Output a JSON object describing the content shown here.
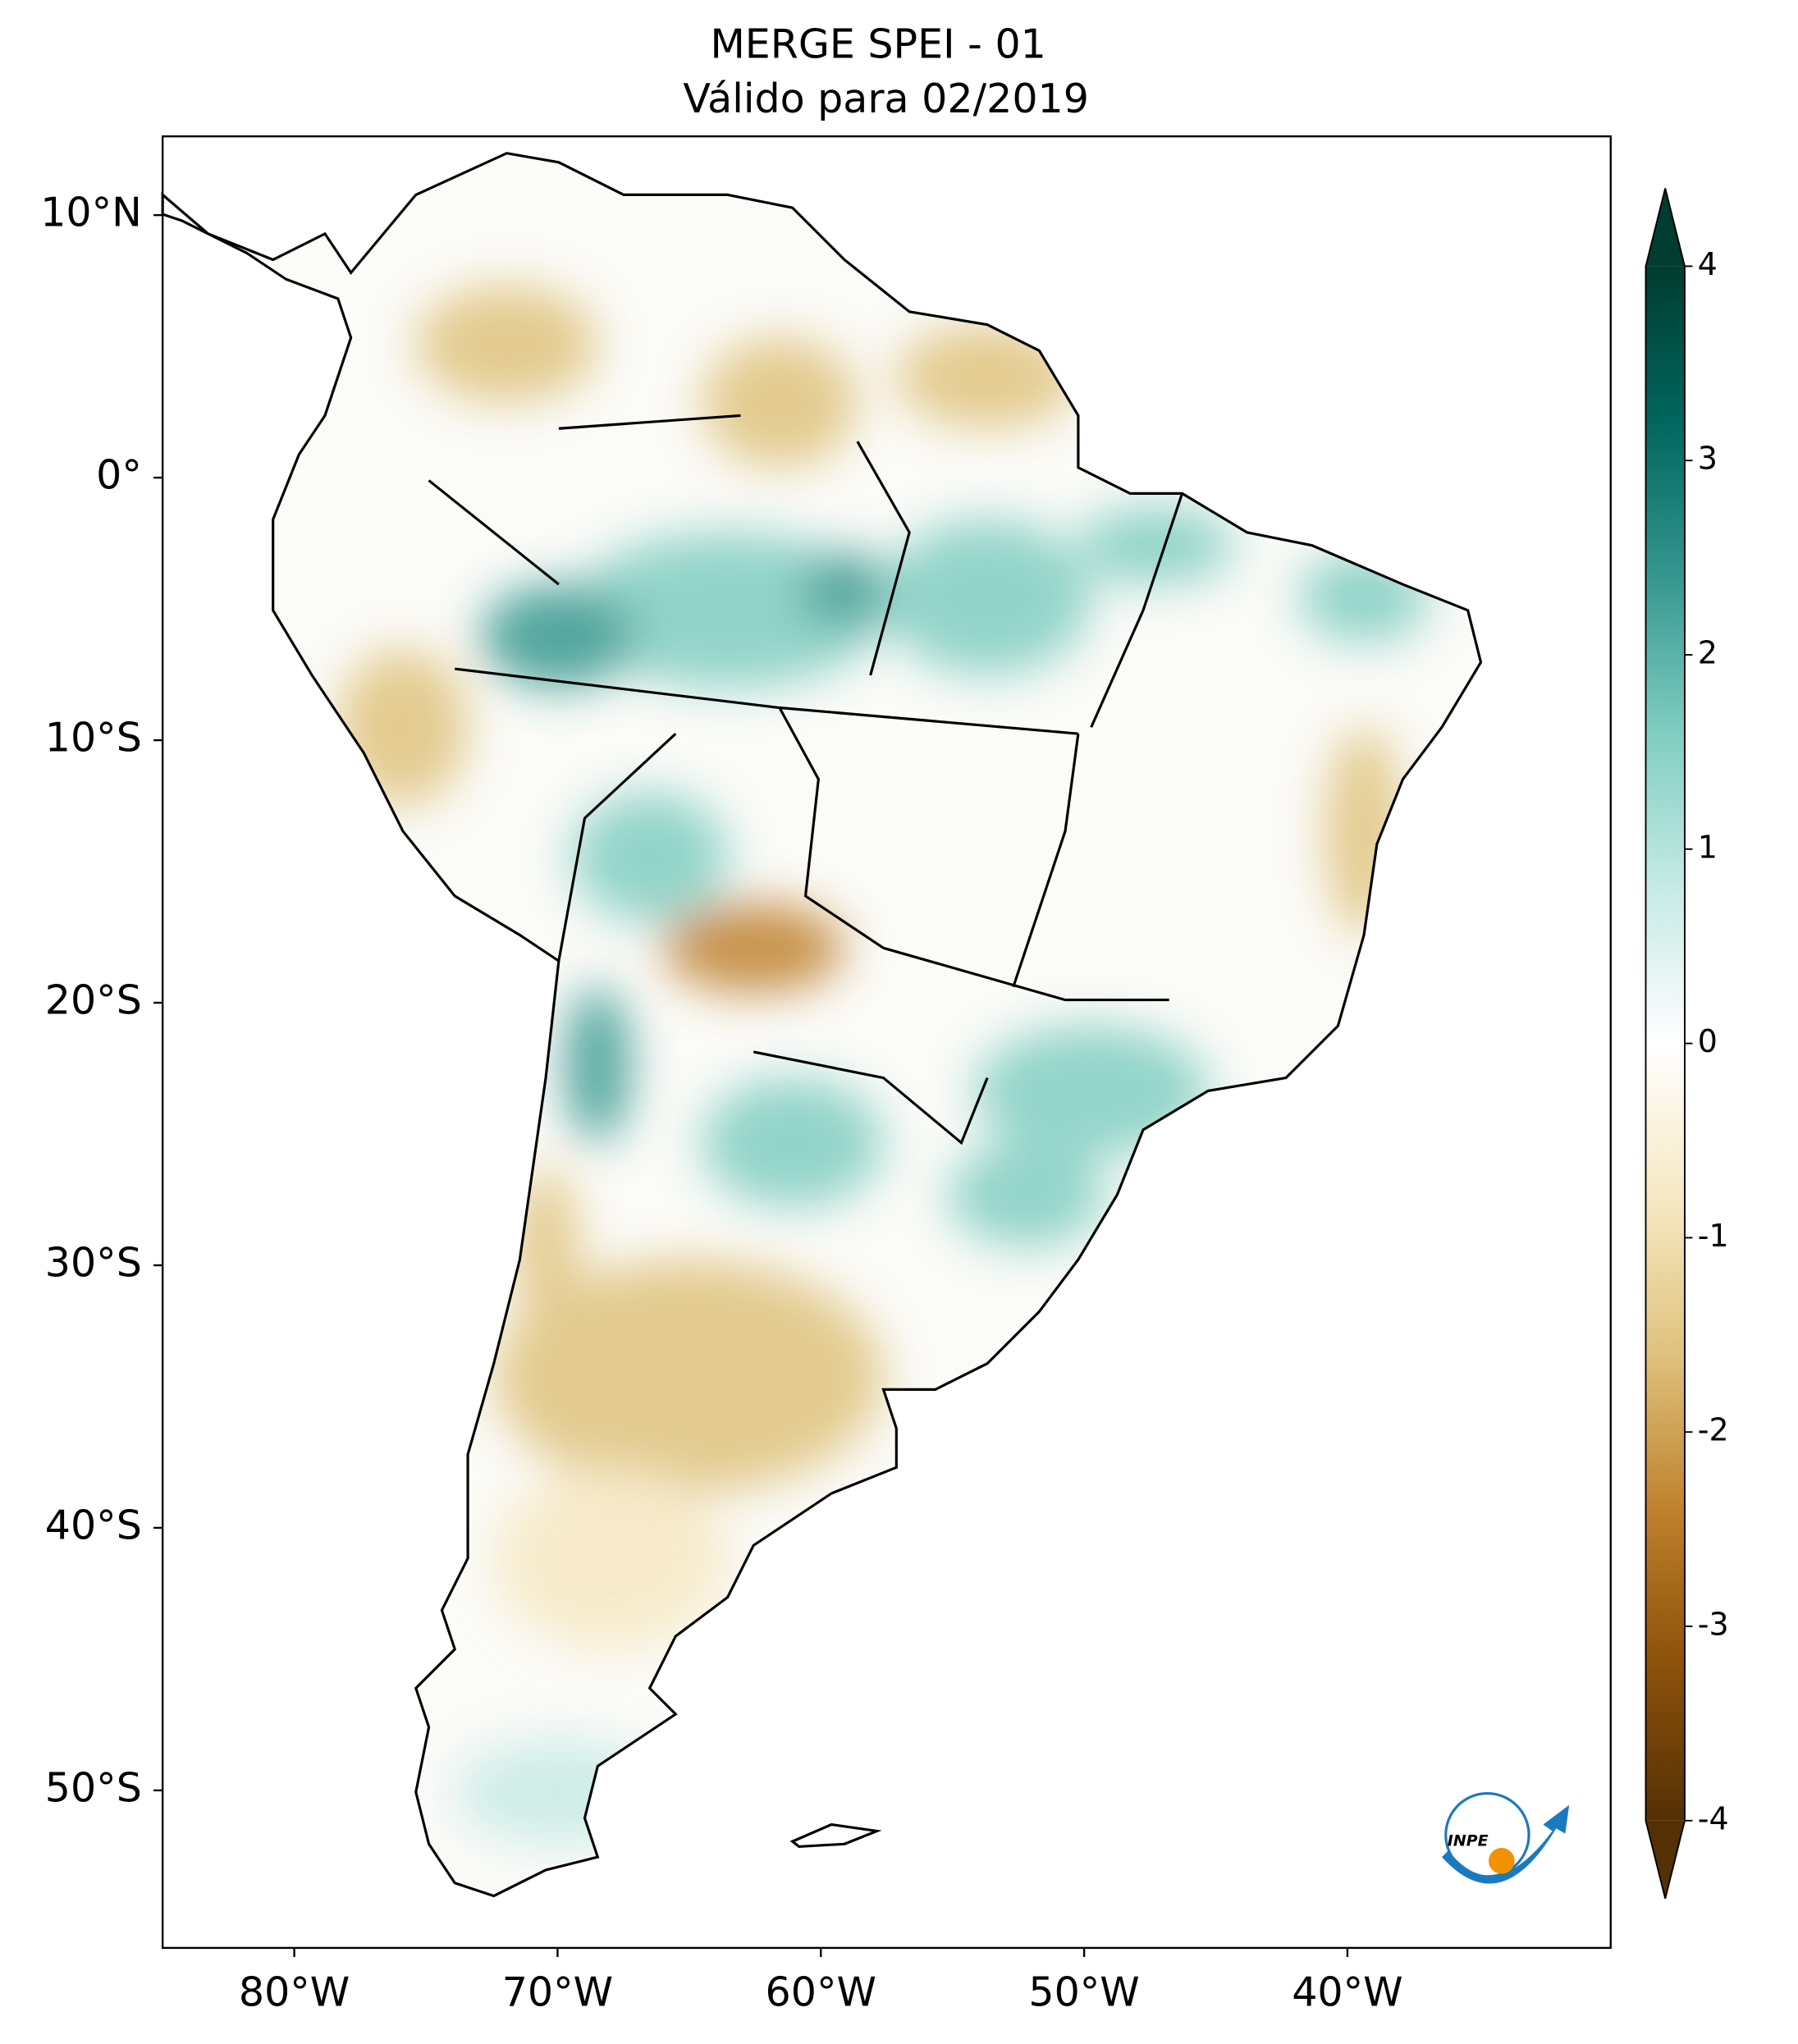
{
  "map": {
    "title": "MERGE   SPEI - 01",
    "subtitle": "Válido para 02/2019",
    "xlim": [
      -85,
      -30
    ],
    "ylim": [
      -56,
      13
    ],
    "xticks": [
      {
        "value": -80,
        "label": "80°W"
      },
      {
        "value": -70,
        "label": "70°W"
      },
      {
        "value": -60,
        "label": "60°W"
      },
      {
        "value": -50,
        "label": "50°W"
      },
      {
        "value": -40,
        "label": "40°W"
      }
    ],
    "yticks": [
      {
        "value": 10,
        "label": "10°N"
      },
      {
        "value": 0,
        "label": "0°"
      },
      {
        "value": -10,
        "label": "10°S"
      },
      {
        "value": -20,
        "label": "20°S"
      },
      {
        "value": -30,
        "label": "30°S"
      },
      {
        "value": -40,
        "label": "40°S"
      },
      {
        "value": -50,
        "label": "50°S"
      }
    ],
    "colorbar": {
      "lim": [
        -4,
        4
      ],
      "ticks": [
        -4,
        -3,
        -2,
        -1,
        0,
        1,
        2,
        3,
        4
      ],
      "colors": [
        "#543005",
        "#8c510a",
        "#bf812d",
        "#dfc27d",
        "#f6e8c3",
        "#ffffff",
        "#c7eae5",
        "#80cdc1",
        "#35978f",
        "#01665e",
        "#003c30"
      ]
    },
    "logo_text": "INPE"
  }
}
